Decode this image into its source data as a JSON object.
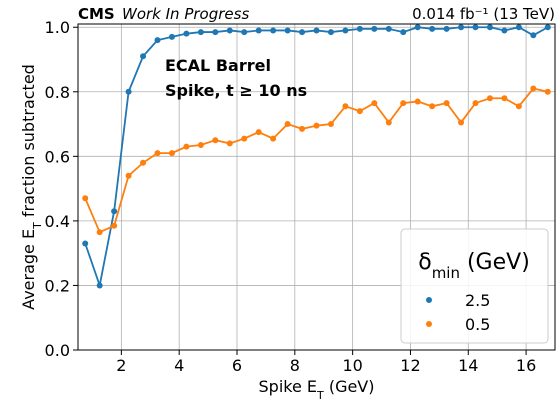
{
  "chart_data": {
    "type": "line",
    "experiment": "CMS",
    "status": "Work In Progress",
    "lumi": "0.014 fb⁻¹ (13 TeV)",
    "annotations": [
      "ECAL Barrel",
      "Spike, t ≥ 10 ns"
    ],
    "x_label": {
      "main": "Spike E",
      "sub": "T",
      "rest": " (GeV)"
    },
    "y_label": {
      "main": "Average E",
      "sub": "T",
      "rest": " fraction subtracted"
    },
    "legend_title": {
      "main": "δ",
      "sub": "min",
      "rest": " (GeV)"
    },
    "legend": "lower right",
    "grid": true,
    "x": [
      0.75,
      1.25,
      1.75,
      2.25,
      2.75,
      3.25,
      3.75,
      4.25,
      4.75,
      5.25,
      5.75,
      6.25,
      6.75,
      7.25,
      7.75,
      8.25,
      8.75,
      9.25,
      9.75,
      10.25,
      10.75,
      11.25,
      11.75,
      12.25,
      12.75,
      13.25,
      13.75,
      14.25,
      14.75,
      15.25,
      15.75,
      16.25,
      16.75
    ],
    "series": [
      {
        "name": "2.5",
        "color": "#1f77b4",
        "values": [
          0.33,
          0.2,
          0.43,
          0.8,
          0.91,
          0.96,
          0.97,
          0.98,
          0.985,
          0.985,
          0.99,
          0.985,
          0.99,
          0.99,
          0.99,
          0.985,
          0.99,
          0.985,
          0.99,
          0.995,
          0.995,
          0.995,
          0.985,
          1.0,
          0.995,
          0.995,
          1.0,
          1.0,
          1.0,
          0.99,
          1.0,
          0.975,
          1.0
        ]
      },
      {
        "name": "0.5",
        "color": "#ff7f0e",
        "values": [
          0.47,
          0.365,
          0.385,
          0.54,
          0.58,
          0.61,
          0.61,
          0.63,
          0.635,
          0.65,
          0.64,
          0.655,
          0.675,
          0.655,
          0.7,
          0.685,
          0.695,
          0.7,
          0.755,
          0.74,
          0.765,
          0.705,
          0.765,
          0.77,
          0.755,
          0.765,
          0.705,
          0.765,
          0.78,
          0.78,
          0.755,
          0.81,
          0.8
        ]
      }
    ],
    "xlim": [
      0.5,
      17
    ],
    "xticks": [
      2,
      4,
      6,
      8,
      10,
      12,
      14,
      16
    ],
    "ylim": [
      0,
      1.01
    ],
    "yticks": [
      {
        "value": 0,
        "label": "0.0"
      },
      0.2,
      0.4,
      0.6,
      0.8,
      {
        "value": 1,
        "label": "1.0"
      }
    ]
  }
}
